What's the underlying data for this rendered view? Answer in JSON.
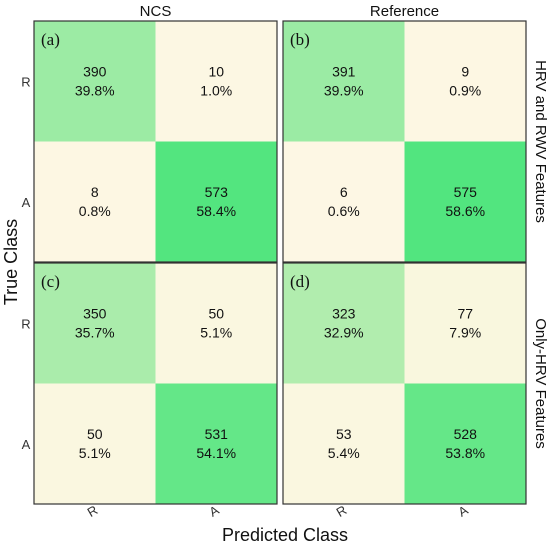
{
  "chart_data": {
    "type": "heatmap",
    "xlabel": "Predicted Class",
    "ylabel": "True Class",
    "column_titles": [
      "NCS",
      "Reference"
    ],
    "row_titles": [
      "HRV and RWV Features",
      "Only-HRV Features"
    ],
    "class_labels": [
      "R",
      "A"
    ],
    "panels": [
      {
        "tag": "(a)",
        "column": "NCS",
        "row": "HRV and RWV Features",
        "counts": [
          [
            390,
            10
          ],
          [
            8,
            573
          ]
        ],
        "percents": [
          "39.8%",
          "1.0%",
          "0.8%",
          "58.4%"
        ]
      },
      {
        "tag": "(b)",
        "column": "Reference",
        "row": "HRV and RWV Features",
        "counts": [
          [
            391,
            9
          ],
          [
            6,
            575
          ]
        ],
        "percents": [
          "39.9%",
          "0.9%",
          "0.6%",
          "58.6%"
        ]
      },
      {
        "tag": "(c)",
        "column": "NCS",
        "row": "Only-HRV Features",
        "counts": [
          [
            350,
            50
          ],
          [
            50,
            531
          ]
        ],
        "percents": [
          "35.7%",
          "5.1%",
          "5.1%",
          "54.1%"
        ]
      },
      {
        "tag": "(d)",
        "column": "Reference",
        "row": "Only-HRV Features",
        "counts": [
          [
            323,
            77
          ],
          [
            53,
            528
          ]
        ],
        "percents": [
          "32.9%",
          "7.9%",
          "5.4%",
          "53.8%"
        ]
      }
    ],
    "colors": {
      "high": "#50e57e",
      "mid": "#a8ecaa",
      "low": "#fdf7e4",
      "low_yellow": "#fcfbdc",
      "border": "#333333"
    }
  }
}
